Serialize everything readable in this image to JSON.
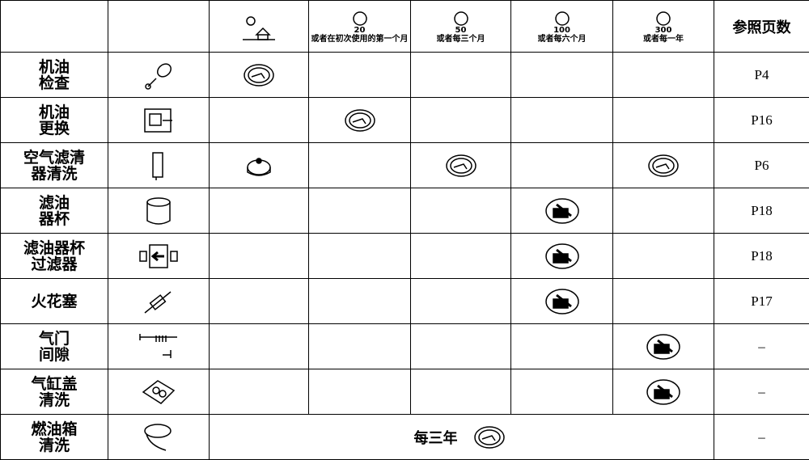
{
  "header": {
    "intervals": [
      {
        "number": "20",
        "label": "或者在初次使用的第一个月"
      },
      {
        "number": "50",
        "label": "或者每三个月"
      },
      {
        "number": "100",
        "label": "或者每六个月"
      },
      {
        "number": "300",
        "label": "或者每一年"
      }
    ],
    "page_ref": "参照页数"
  },
  "rows": [
    {
      "name": [
        "机油",
        "检查"
      ],
      "page": "P4"
    },
    {
      "name": [
        "机油",
        "更换"
      ],
      "page": "P16"
    },
    {
      "name": [
        "空气滤清",
        "器清洗"
      ],
      "page": "P6"
    },
    {
      "name": [
        "滤油",
        "器杯"
      ],
      "page": "P18"
    },
    {
      "name": [
        "滤油器杯",
        "过滤器"
      ],
      "page": "P18"
    },
    {
      "name": [
        "火花塞"
      ],
      "page": "P17"
    },
    {
      "name": [
        "气门",
        "间隙"
      ],
      "page": "–"
    },
    {
      "name": [
        "气缸盖",
        "清洗"
      ],
      "page": "–"
    },
    {
      "name": [
        "燃油箱",
        "清洗"
      ],
      "page": "–",
      "note": "每三年"
    }
  ]
}
